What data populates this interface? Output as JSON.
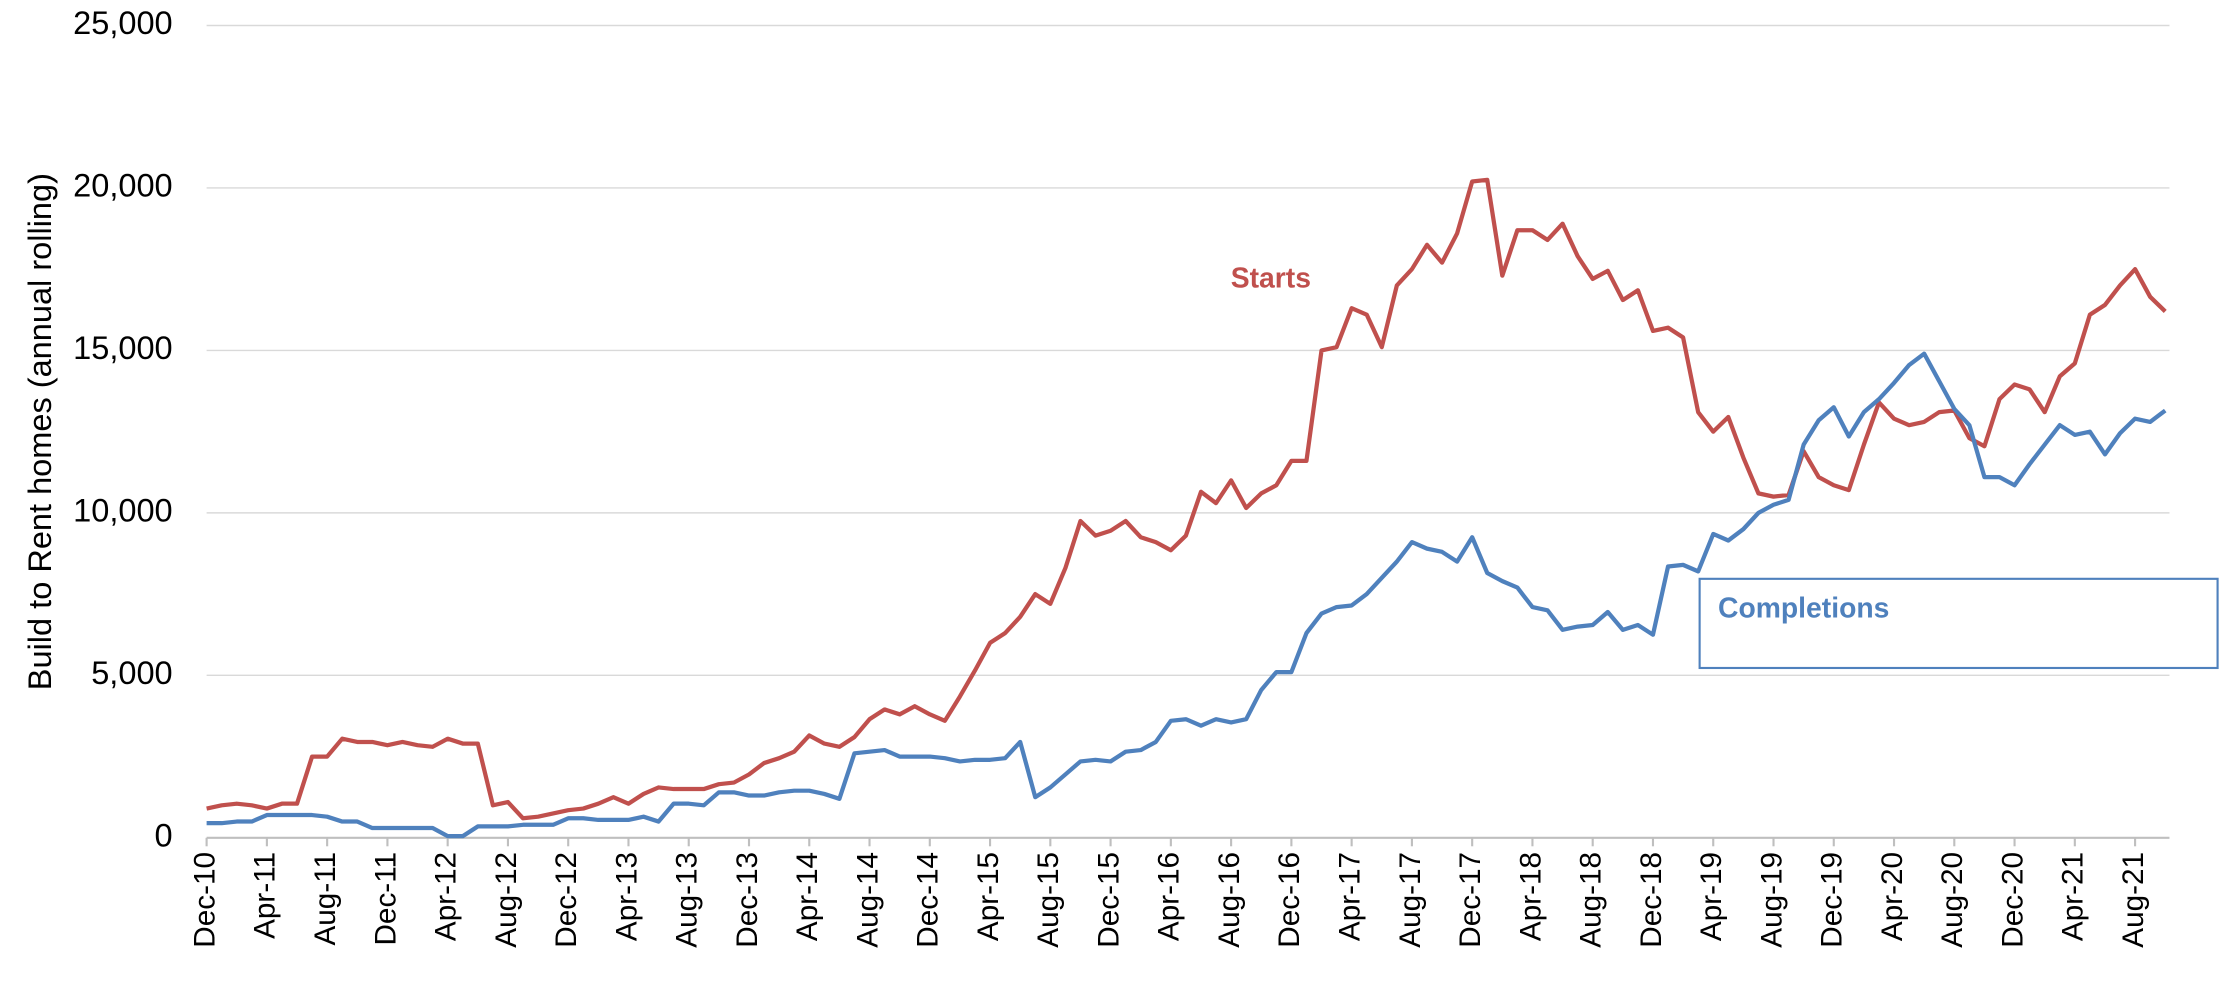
{
  "chart_data": {
    "type": "line",
    "y_label": "Build to Rent homes (annual rolling)",
    "categories": [
      "Dec-10",
      null,
      null,
      null,
      "Apr-11",
      null,
      null,
      null,
      "Aug-11",
      null,
      null,
      null,
      "Dec-11",
      null,
      null,
      null,
      "Apr-12",
      null,
      null,
      null,
      "Aug-12",
      null,
      null,
      null,
      "Dec-12",
      null,
      null,
      null,
      "Apr-13",
      null,
      null,
      null,
      "Aug-13",
      null,
      null,
      null,
      "Dec-13",
      null,
      null,
      null,
      "Apr-14",
      null,
      null,
      null,
      "Aug-14",
      null,
      null,
      null,
      "Dec-14",
      null,
      null,
      null,
      "Apr-15",
      null,
      null,
      null,
      "Aug-15",
      null,
      null,
      null,
      "Dec-15",
      null,
      null,
      null,
      "Apr-16",
      null,
      null,
      null,
      "Aug-16",
      null,
      null,
      null,
      "Dec-16",
      null,
      null,
      null,
      "Apr-17",
      null,
      null,
      null,
      "Aug-17",
      null,
      null,
      null,
      "Dec-17",
      null,
      null,
      null,
      "Apr-18",
      null,
      null,
      null,
      "Aug-18",
      null,
      null,
      null,
      "Dec-18",
      null,
      null,
      null,
      "Apr-19",
      null,
      null,
      null,
      "Aug-19",
      null,
      null,
      null,
      "Dec-19",
      null,
      null,
      null,
      "Apr-20",
      null,
      null,
      null,
      "Aug-20",
      null,
      null,
      null,
      "Dec-20",
      null,
      null,
      null,
      "Apr-21",
      null,
      null,
      null,
      "Aug-21",
      null,
      null
    ],
    "series": [
      {
        "name": "Starts",
        "color": "#c0504d",
        "values": [
          900,
          1000,
          1050,
          1000,
          900,
          1050,
          1050,
          2500,
          2500,
          3050,
          2950,
          2950,
          2850,
          2950,
          2850,
          2800,
          3050,
          2900,
          2900,
          1000,
          1100,
          600,
          650,
          750,
          850,
          900,
          1050,
          1250,
          1050,
          1350,
          1550,
          1500,
          1500,
          1500,
          1650,
          1700,
          1950,
          2300,
          2450,
          2650,
          3150,
          2900,
          2800,
          3100,
          3650,
          3950,
          3800,
          4050,
          3800,
          3600,
          4350,
          5150,
          6000,
          6300,
          6800,
          7500,
          7200,
          8300,
          9750,
          9300,
          9450,
          9750,
          9250,
          9100,
          8850,
          9300,
          10650,
          10300,
          11000,
          10150,
          10600,
          10850,
          11600,
          11600,
          15000,
          15100,
          16300,
          16100,
          15100,
          17000,
          17500,
          18250,
          17700,
          18600,
          20200,
          20250,
          17300,
          18700,
          18700,
          18400,
          18900,
          17900,
          17200,
          17450,
          16550,
          16850,
          15600,
          15700,
          15400,
          13100,
          12500,
          12950,
          11700,
          10600,
          10500,
          10550,
          11900,
          11100,
          10850,
          10700,
          12100,
          13400,
          12900,
          12700,
          12800,
          13100,
          13150,
          12300,
          12050,
          13500,
          13950,
          13800,
          13100,
          14200,
          14600,
          16100,
          16400,
          17000,
          17500,
          16650,
          16200
        ]
      },
      {
        "name": "Completions",
        "color": "#4f81bd",
        "values": [
          450,
          450,
          500,
          500,
          700,
          700,
          700,
          700,
          650,
          500,
          500,
          300,
          300,
          300,
          300,
          300,
          50,
          50,
          350,
          350,
          350,
          400,
          400,
          400,
          600,
          600,
          550,
          550,
          550,
          650,
          500,
          1050,
          1050,
          1000,
          1400,
          1400,
          1300,
          1300,
          1400,
          1450,
          1450,
          1350,
          1200,
          2600,
          2650,
          2700,
          2500,
          2500,
          2500,
          2450,
          2350,
          2400,
          2400,
          2450,
          2950,
          1250,
          1550,
          1950,
          2350,
          2400,
          2350,
          2650,
          2700,
          2950,
          3600,
          3650,
          3450,
          3650,
          3550,
          3650,
          4550,
          5100,
          5100,
          6300,
          6900,
          7100,
          7150,
          7500,
          8000,
          8500,
          9100,
          8900,
          8800,
          8500,
          9250,
          8150,
          7900,
          7700,
          7100,
          7000,
          6400,
          6500,
          6550,
          6950,
          6400,
          6550,
          6250,
          8350,
          8400,
          8200,
          9350,
          9150,
          9500,
          10000,
          10250,
          10400,
          12100,
          12850,
          13250,
          12350,
          13100,
          13500,
          14000,
          14550,
          14900,
          14050,
          13200,
          12700,
          11100,
          11100,
          10850,
          11500,
          12100,
          12700,
          12400,
          12500,
          11800,
          12450,
          12900,
          12800,
          13150
        ]
      }
    ],
    "ylim": [
      0,
      25000
    ],
    "yticks": [
      0,
      {
        "value": 5000,
        "label": "5,000"
      },
      {
        "value": 10000,
        "label": "10,000"
      },
      {
        "value": 15000,
        "label": "15,000"
      },
      {
        "value": 20000,
        "label": "20,000"
      },
      {
        "value": 25000,
        "label": "25,000"
      }
    ],
    "grid": true
  }
}
